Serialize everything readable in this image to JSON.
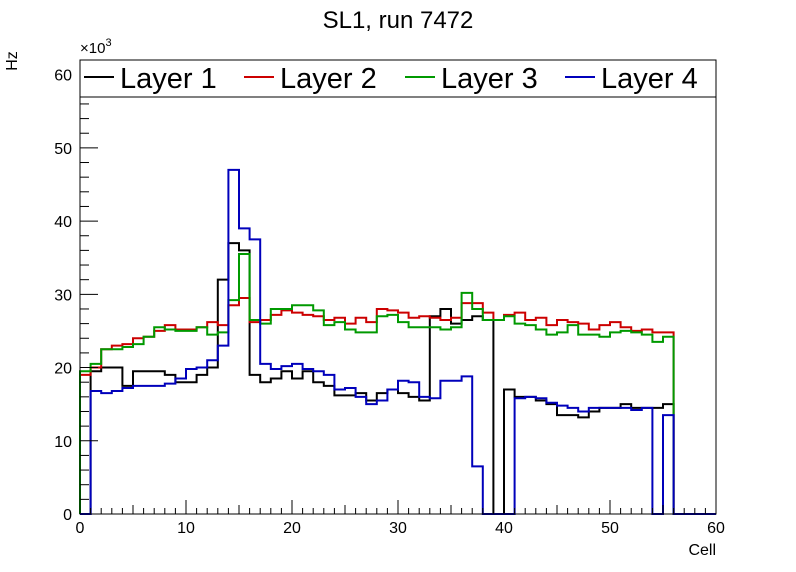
{
  "chart_data": {
    "type": "line",
    "title": "SL1, run 7472",
    "xlabel": "Cell",
    "ylabel": "Hz",
    "y_multiplier": "×10",
    "y_multiplier_exp": "3",
    "xlim": [
      0,
      60
    ],
    "ylim": [
      0,
      62
    ],
    "x_ticks": [
      "0",
      "10",
      "20",
      "30",
      "40",
      "50",
      "60"
    ],
    "y_ticks": [
      "0",
      "10",
      "20",
      "30",
      "40",
      "50",
      "60"
    ],
    "grid": false,
    "legend_position": "top",
    "series": [
      {
        "name": "Layer 1",
        "color": "#000000",
        "values": [
          0,
          19.5,
          20,
          20,
          17.5,
          19.5,
          19.5,
          19.5,
          19,
          18,
          18,
          19,
          20,
          32,
          37,
          36,
          19,
          18,
          18.5,
          19.5,
          18.5,
          19.5,
          18,
          17.5,
          16.2,
          16.2,
          16.5,
          15.5,
          16.5,
          17,
          16.5,
          16,
          15.5,
          27,
          28,
          26,
          26.5,
          27,
          26.5,
          0,
          17,
          16,
          16,
          15.5,
          15,
          13.5,
          13.5,
          13.2,
          14,
          14.5,
          14.5,
          15,
          14.5,
          14.5,
          14.5,
          15,
          0,
          0,
          0,
          0
        ]
      },
      {
        "name": "Layer 2",
        "color": "#cc0000",
        "values": [
          19,
          20,
          22.5,
          23,
          23.2,
          24,
          24.2,
          25,
          25.8,
          25.2,
          25.2,
          25.5,
          26.2,
          25.8,
          28.5,
          29.5,
          26.2,
          26.5,
          27.2,
          27.8,
          27.5,
          27.2,
          27,
          26.5,
          26.8,
          26,
          26.8,
          26.2,
          28,
          27.8,
          27.5,
          26.8,
          27,
          26.8,
          26.5,
          26.8,
          28.8,
          28.8,
          27.5,
          26.5,
          27.2,
          27.5,
          26.5,
          26.8,
          25.8,
          26.5,
          26.2,
          26,
          25.2,
          25.8,
          26.2,
          25.5,
          25,
          25.2,
          24.8,
          24.8,
          0,
          0,
          0,
          0
        ]
      },
      {
        "name": "Layer 3",
        "color": "#009900",
        "values": [
          19.5,
          20.5,
          22.5,
          22.5,
          22.8,
          23.2,
          24.2,
          25.5,
          25.2,
          25,
          25,
          25.5,
          24.5,
          24.8,
          29.2,
          35.5,
          26.5,
          26,
          28,
          28,
          28.5,
          28.5,
          27.8,
          25.8,
          26.2,
          25.2,
          24.8,
          24.8,
          27,
          27.2,
          26.2,
          25.5,
          25.5,
          25.5,
          25.2,
          25.5,
          30.2,
          28,
          26.5,
          26.5,
          27,
          26,
          25.8,
          25.2,
          24.5,
          24.8,
          25.8,
          24.5,
          24.5,
          24.2,
          24.8,
          25,
          24.8,
          24.5,
          23.5,
          24.2,
          0,
          0,
          0,
          0
        ]
      },
      {
        "name": "Layer 4",
        "color": "#0000bb",
        "values": [
          0,
          16.8,
          16.5,
          16.8,
          17.2,
          17.5,
          17.5,
          17.5,
          17.8,
          18.5,
          19.8,
          20,
          21,
          23,
          47,
          39,
          37.5,
          20.5,
          19.8,
          20.2,
          20.5,
          19.8,
          19.5,
          19,
          17,
          17.2,
          16,
          15,
          15.5,
          17,
          18.2,
          18,
          16,
          15.8,
          18.2,
          18.2,
          18.8,
          6.5,
          0,
          0,
          0,
          15.8,
          16,
          15.8,
          15.2,
          14.8,
          14.5,
          14,
          14.5,
          14.5,
          14.5,
          14.5,
          14.2,
          14.5,
          0,
          13.5,
          0,
          0,
          0,
          0
        ]
      }
    ]
  }
}
